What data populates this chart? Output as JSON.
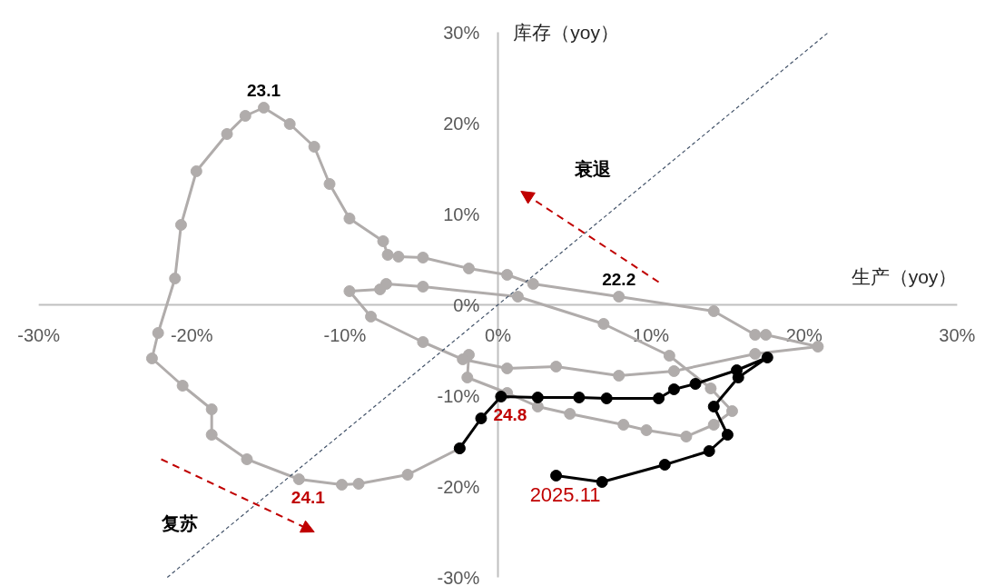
{
  "chart_data": {
    "type": "line",
    "xlabel": "生产（yoy）",
    "ylabel": "库存（yoy）",
    "xlim": [
      -30,
      30
    ],
    "ylim": [
      -30,
      30
    ],
    "xticks": [
      {
        "value": -30,
        "label": "-30%"
      },
      {
        "value": -20,
        "label": "-20%"
      },
      {
        "value": -10,
        "label": "-10%"
      },
      {
        "value": 0,
        "label": "0%"
      },
      {
        "value": 10,
        "label": "10%"
      },
      {
        "value": 20,
        "label": "20%"
      },
      {
        "value": 30,
        "label": "30%"
      }
    ],
    "yticks": [
      {
        "value": -30,
        "label": "-30%"
      },
      {
        "value": -20,
        "label": "-20%"
      },
      {
        "value": -10,
        "label": "-10%"
      },
      {
        "value": 0,
        "label": "0%"
      },
      {
        "value": 10,
        "label": "10%"
      },
      {
        "value": 20,
        "label": "20%"
      },
      {
        "value": 30,
        "label": "30%"
      }
    ],
    "grid": false,
    "marker": "circle",
    "series": [
      {
        "color": "#b0acab",
        "x": [
          -1.9,
          -2.0,
          0.6,
          2.6,
          4.7,
          8.2,
          9.7,
          12.3,
          14.1,
          15.3,
          13.9,
          11.2,
          6.9,
          1.3,
          -4.9,
          -7.3,
          -7.7,
          -9.7,
          -8.3,
          -4.9,
          -2.3,
          0.6,
          3.8,
          7.9,
          11.5,
          16.8,
          20.9,
          17.5,
          16.8,
          14.1,
          7.9,
          2.3,
          0.6,
          -1.9,
          -4.9,
          -6.5,
          -7.2,
          -7.5,
          -9.7,
          -11.0,
          -12.0,
          -13.6,
          -15.3,
          -16.5,
          -17.7,
          -19.7,
          -20.7,
          -21.1,
          -22.2,
          -22.6,
          -20.6,
          -18.7,
          -18.7,
          -16.4,
          -13.0,
          -10.2,
          -9.1,
          -5.9,
          -2.5
        ],
        "values": [
          -5.5,
          -8.0,
          -9.7,
          -11.2,
          -12.0,
          -13.2,
          -13.8,
          -14.5,
          -13.2,
          -11.7,
          -9.2,
          -5.6,
          -2.1,
          0.9,
          2.0,
          2.3,
          1.7,
          1.5,
          -1.3,
          -4.1,
          -6.0,
          -7.0,
          -6.8,
          -7.8,
          -7.3,
          -5.4,
          -4.6,
          -3.3,
          -3.3,
          -0.7,
          0.9,
          2.3,
          3.3,
          4.0,
          5.2,
          5.3,
          5.5,
          7.0,
          9.5,
          13.3,
          17.4,
          19.9,
          21.7,
          20.8,
          18.8,
          14.7,
          8.8,
          2.9,
          -3.1,
          -5.9,
          -8.9,
          -11.5,
          -14.3,
          -17.0,
          -19.2,
          -19.8,
          -19.7,
          -18.7,
          -15.8
        ]
      },
      {
        "color": "#000000",
        "x": [
          -2.5,
          -1.1,
          0.2,
          2.6,
          5.3,
          7.1,
          10.5,
          11.5,
          12.9,
          15.6,
          17.6,
          15.7,
          14.1,
          15.0,
          13.8,
          10.9,
          6.8,
          3.8
        ],
        "values": [
          -15.8,
          -12.5,
          -10.1,
          -10.2,
          -10.2,
          -10.3,
          -10.3,
          -9.3,
          -8.7,
          -7.2,
          -5.8,
          -8.0,
          -11.2,
          -14.3,
          -16.1,
          -17.6,
          -19.5,
          -18.8
        ]
      },
      {
        "color": "#44546a",
        "marker": "none",
        "line_style": "dashed",
        "x": [
          -21.6,
          21.6
        ],
        "values": [
          -30,
          30
        ]
      }
    ],
    "annotations": [
      {
        "text": "23.1",
        "x": -15.3,
        "y": 21.7
      },
      {
        "text": "22.2",
        "x": 7.9,
        "y": 0.9
      },
      {
        "text": "24.1",
        "x": -13.0,
        "y": -19.2
      },
      {
        "text": "24.8",
        "x": 0.2,
        "y": -10.1
      },
      {
        "text": "2025.11",
        "x": 3.8,
        "y": -18.8
      },
      "衰退",
      "复苏"
    ]
  }
}
